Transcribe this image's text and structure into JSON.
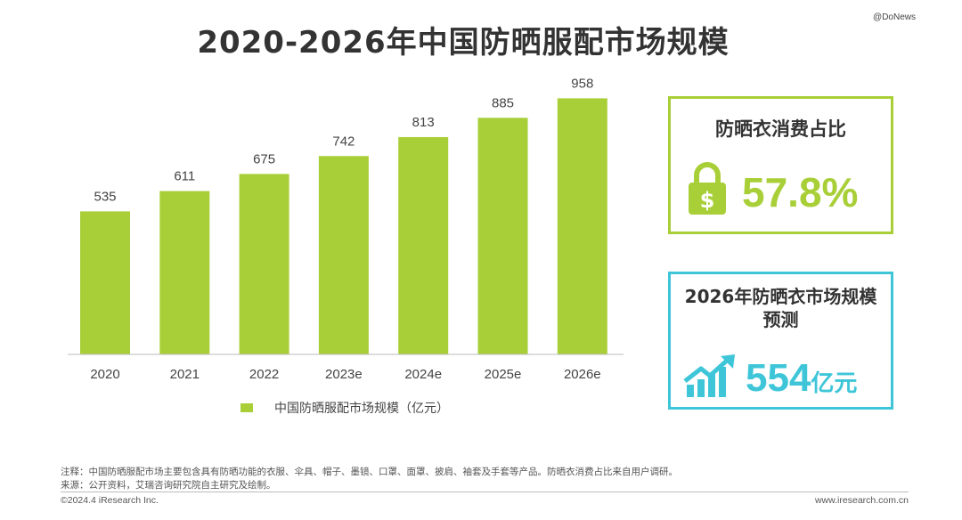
{
  "watermark": "@DoNews",
  "title": "2020-2026年中国防晒服配市场规模",
  "chart_data": {
    "type": "bar",
    "categories": [
      "2020",
      "2021",
      "2022",
      "2023e",
      "2024e",
      "2025e",
      "2026e"
    ],
    "values": [
      535,
      611,
      675,
      742,
      813,
      885,
      958
    ],
    "series": [
      {
        "name": "中国防晒服配市场规模（亿元）",
        "values": [
          535,
          611,
          675,
          742,
          813,
          885,
          958
        ]
      }
    ],
    "ylim": [
      0,
      1000
    ],
    "grid": false,
    "legend_position": "bottom",
    "color": "#a9cf38"
  },
  "legend": {
    "label": "中国防晒服配市场规模（亿元）"
  },
  "card1": {
    "title": "防晒衣消费占比",
    "value": "57.8%",
    "icon": "padlock-dollar-icon",
    "color": "#a9cf38"
  },
  "card2": {
    "title_line1": "2026年防晒衣市场规模",
    "title_line2": "预测",
    "value": "554",
    "unit": "亿元",
    "icon": "growth-chart-arrow-icon",
    "color": "#3ec6d8"
  },
  "footnote": {
    "note": "注释：中国防晒服配市场主要包含具有防晒功能的衣服、伞具、帽子、墨镜、口罩、面罩、披肩、袖套及手套等产品。防晒衣消费占比来自用户调研。",
    "source": "来源：公开资料，艾瑞咨询研究院自主研究及绘制。",
    "copyright": "©2024.4 iResearch Inc.",
    "website": "www.iresearch.com.cn"
  }
}
